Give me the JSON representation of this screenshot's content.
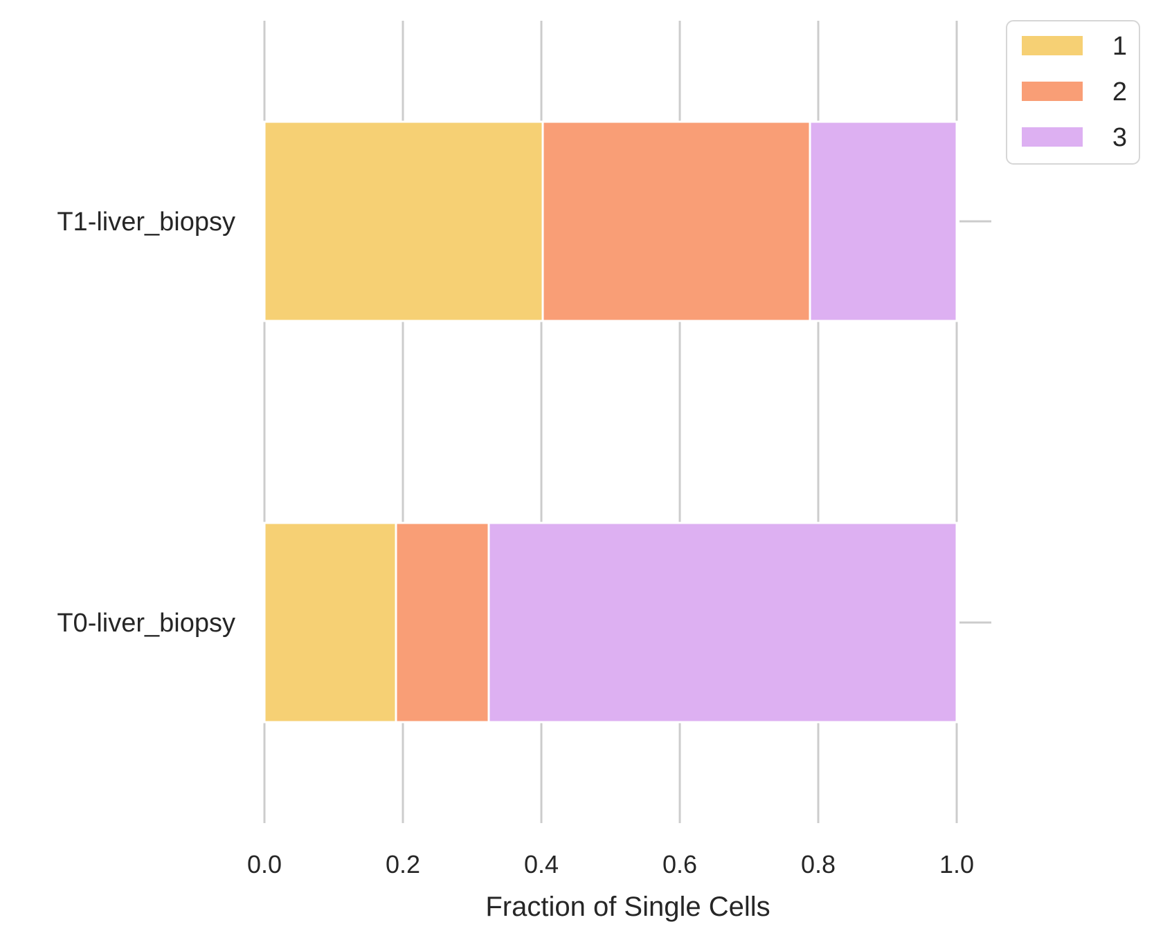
{
  "chart_data": {
    "type": "bar",
    "orientation": "horizontal",
    "stacked": true,
    "categories": [
      "T1-liver_biopsy",
      "T0-liver_biopsy"
    ],
    "series": [
      {
        "name": "1",
        "values": [
          0.402,
          0.19
        ],
        "color": "#f6d074"
      },
      {
        "name": "2",
        "values": [
          0.386,
          0.134
        ],
        "color": "#f99e76"
      },
      {
        "name": "3",
        "values": [
          0.212,
          0.676
        ],
        "color": "#ddb0f2"
      }
    ],
    "xlabel": "Fraction of Single Cells",
    "ylabel": "",
    "xlim": [
      0,
      1.0
    ],
    "xticks": [
      "0.0",
      "0.2",
      "0.4",
      "0.6",
      "0.8",
      "1.0"
    ],
    "xtick_values": [
      0,
      0.2,
      0.4,
      0.6,
      0.8,
      1.0
    ],
    "grid": "vertical",
    "grid_color": "#cccccc",
    "legend_position": "top-right-outside"
  }
}
